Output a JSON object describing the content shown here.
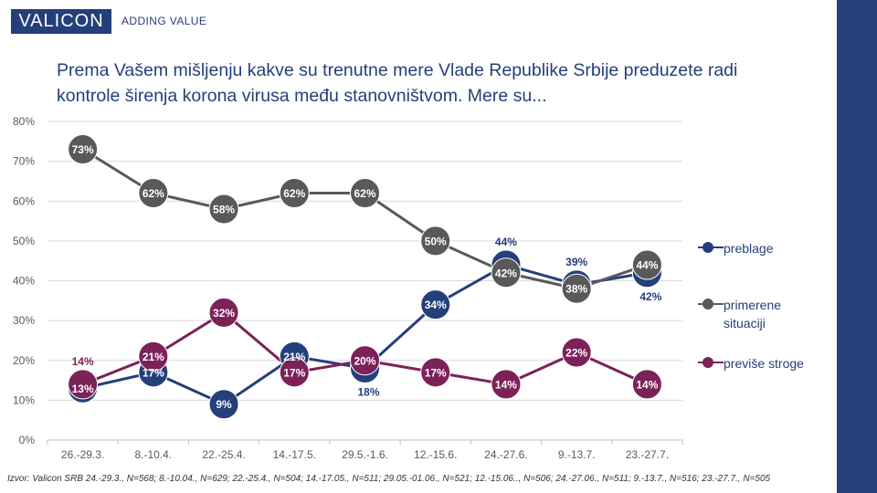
{
  "header": {
    "logo_text": "VALICON",
    "tagline": "ADDING VALUE",
    "brand_color": "#243F7A"
  },
  "title": "Prema Vašem mišljenju kakve su trenutne mere Vlade Republike Srbije preduzete radi kontrole širenja korona virusa među stanovništvom. Mere su...",
  "footnote": "Izvor: Valicon SRB 24.-29.3., N=568; 8.-10.04., N=629; 22.-25.4., N=504; 14.-17.05., N=511; 29.05.-01.06., N=521; 12.-15.06.., N=506; 24.-27.06., N=511; 9.-13.7., N=516; 23.-27.7., N=505",
  "chart_data": {
    "type": "line",
    "categories": [
      "26.-29.3.",
      "8.-10.4.",
      "22.-25.4.",
      "14.-17.5.",
      "29.5.-1.6.",
      "12.-15.6.",
      "24.-27.6.",
      "9.-13.7.",
      "23.-27.7."
    ],
    "ylim": [
      0,
      80
    ],
    "yticks": [
      "0%",
      "10%",
      "20%",
      "30%",
      "40%",
      "50%",
      "60%",
      "70%",
      "80%"
    ],
    "grid": true,
    "legend_position": "right",
    "series": [
      {
        "name": "preblage",
        "color": "#243F7A",
        "values": [
          13,
          17,
          9,
          21,
          18,
          34,
          44,
          39,
          42
        ],
        "labels": [
          "13%",
          "17%",
          "9%",
          "21%",
          "18%",
          "34%",
          "44%",
          "39%",
          "42%"
        ]
      },
      {
        "name": "primerene situaciji",
        "color": "#595959",
        "values": [
          73,
          62,
          58,
          62,
          62,
          50,
          42,
          38,
          44
        ],
        "labels": [
          "73%",
          "62%",
          "58%",
          "62%",
          "62%",
          "50%",
          "42%",
          "38%",
          "44%"
        ]
      },
      {
        "name": "previše stroge",
        "color": "#7B2258",
        "values": [
          14,
          21,
          32,
          17,
          20,
          17,
          14,
          22,
          14
        ],
        "labels": [
          "14%",
          "21%",
          "32%",
          "17%",
          "20%",
          "17%",
          "14%",
          "22%",
          "14%"
        ]
      }
    ]
  }
}
